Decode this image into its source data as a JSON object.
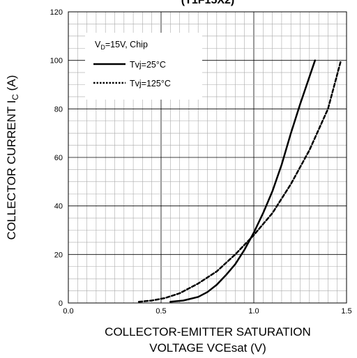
{
  "chart_data": {
    "type": "line",
    "title": "(T1F15X2)",
    "xlabel_line1": "COLLECTOR-EMITTER SATURATION",
    "xlabel_line2": "VOLTAGE VCEsat (V)",
    "ylabel_main": "COLLECTOR CURRENT I",
    "ylabel_sub": "C",
    "ylabel_unit": " (A)",
    "xlim": [
      0,
      1.5
    ],
    "ylim": [
      0,
      120
    ],
    "x_ticks": [
      0.0,
      0.5,
      1.0,
      1.5
    ],
    "x_tick_labels": [
      "0.0",
      "0.5",
      "1.0",
      "1.5"
    ],
    "y_ticks": [
      0,
      20,
      40,
      60,
      80,
      100,
      120
    ],
    "y_tick_labels": [
      "0",
      "20",
      "40",
      "60",
      "80",
      "100",
      "120"
    ],
    "grid": true,
    "legend": {
      "placement": "top-left",
      "header_main": "V",
      "header_sub": "D",
      "header_rest": "=15V, Chip"
    },
    "series": [
      {
        "name": "Tvj=25°C",
        "style": "solid",
        "color": "#000000",
        "x": [
          0.55,
          0.62,
          0.7,
          0.75,
          0.8,
          0.85,
          0.9,
          0.95,
          1.0,
          1.05,
          1.1,
          1.15,
          1.2,
          1.25,
          1.33
        ],
        "y": [
          0.5,
          1,
          2.5,
          4.5,
          7.5,
          11.5,
          16,
          22,
          29,
          37,
          46,
          57,
          70,
          82,
          100
        ]
      },
      {
        "name": "Tvj=125°C",
        "style": "dotted",
        "color": "#000000",
        "x": [
          0.38,
          0.45,
          0.52,
          0.6,
          0.7,
          0.8,
          0.9,
          1.0,
          1.1,
          1.2,
          1.3,
          1.4,
          1.47
        ],
        "y": [
          0.5,
          1,
          2,
          4,
          8,
          13,
          20,
          28,
          37,
          49,
          63,
          80,
          100
        ]
      }
    ]
  }
}
